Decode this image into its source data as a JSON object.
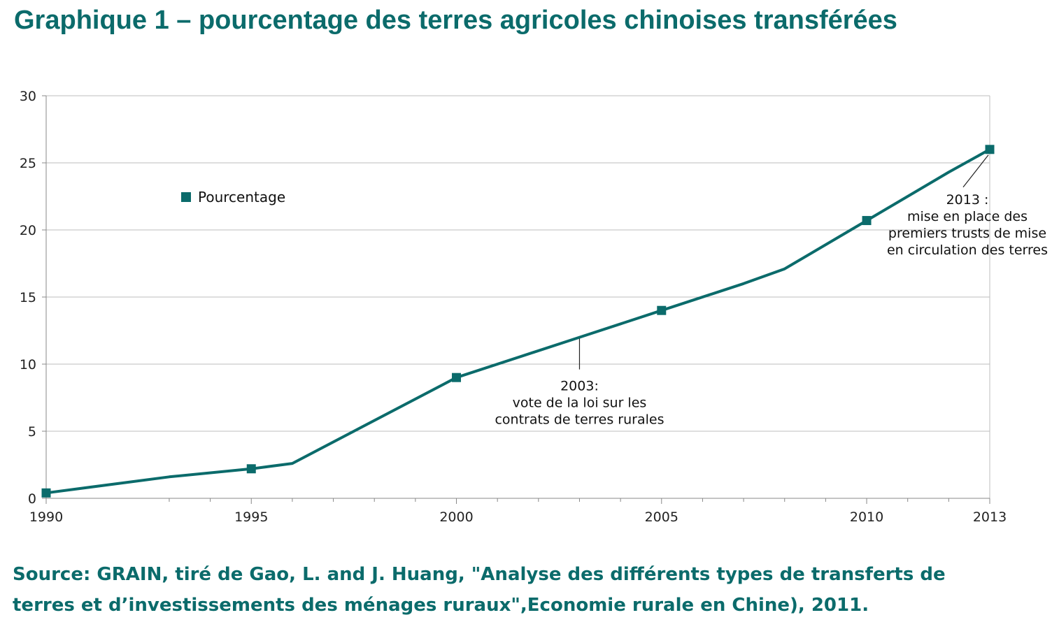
{
  "title": "Graphique 1 – pourcentage des terres agricoles chinoises transférées",
  "source_line1": "Source: GRAIN, tiré de Gao, L. and J. Huang, \"Analyse des différents types de transferts de",
  "source_line2": "terres et d’investissements des ménages ruraux\",Economie rurale en Chine), 2011.",
  "colors": {
    "accent": "#0b6b6b",
    "grid": "#bdbdbd",
    "axis": "#888888"
  },
  "chart_data": {
    "type": "line",
    "title": "Graphique 1 – pourcentage des terres agricoles chinoises transférées",
    "xlabel": "",
    "ylabel": "",
    "xlim": [
      1990,
      2013
    ],
    "ylim": [
      0,
      30
    ],
    "yticks": [
      0,
      5,
      10,
      15,
      20,
      25,
      30
    ],
    "xtick_labels": [
      {
        "x": 1990,
        "label": "1990"
      },
      {
        "x": 1995,
        "label": "1995"
      },
      {
        "x": 2000,
        "label": "2000"
      },
      {
        "x": 2005,
        "label": "2005"
      },
      {
        "x": 2010,
        "label": "2010"
      },
      {
        "x": 2013,
        "label": "2013"
      }
    ],
    "minor_ticks": [
      1993,
      1994,
      1996,
      1997,
      1998,
      1999,
      2001,
      2002,
      2003,
      2004,
      2006,
      2007,
      2008,
      2009,
      2011,
      2012
    ],
    "grid": true,
    "legend_position": "left",
    "series": [
      {
        "name": "Pourcentage",
        "color": "#0b6b6b",
        "x": [
          1990,
          1993,
          1995,
          1996,
          2000,
          2003,
          2005,
          2007,
          2008,
          2010,
          2012,
          2013
        ],
        "y": [
          0.4,
          1.6,
          2.2,
          2.6,
          9.0,
          12.0,
          14.0,
          16.0,
          17.1,
          20.7,
          24.3,
          26.0
        ],
        "markers_x": [
          1990,
          1995,
          2000,
          2005,
          2010,
          2013
        ]
      }
    ],
    "annotations": [
      {
        "x": 2003,
        "y": 12.0,
        "anchor": "below",
        "lines": [
          "2003:",
          "vote de la loi sur les",
          "contrats de terres rurales"
        ]
      },
      {
        "x": 2013,
        "y": 26.0,
        "anchor": "below-left",
        "lines": [
          "2013 :",
          "mise en place des",
          "premiers trusts de mise",
          "en circulation des terres"
        ]
      }
    ]
  }
}
